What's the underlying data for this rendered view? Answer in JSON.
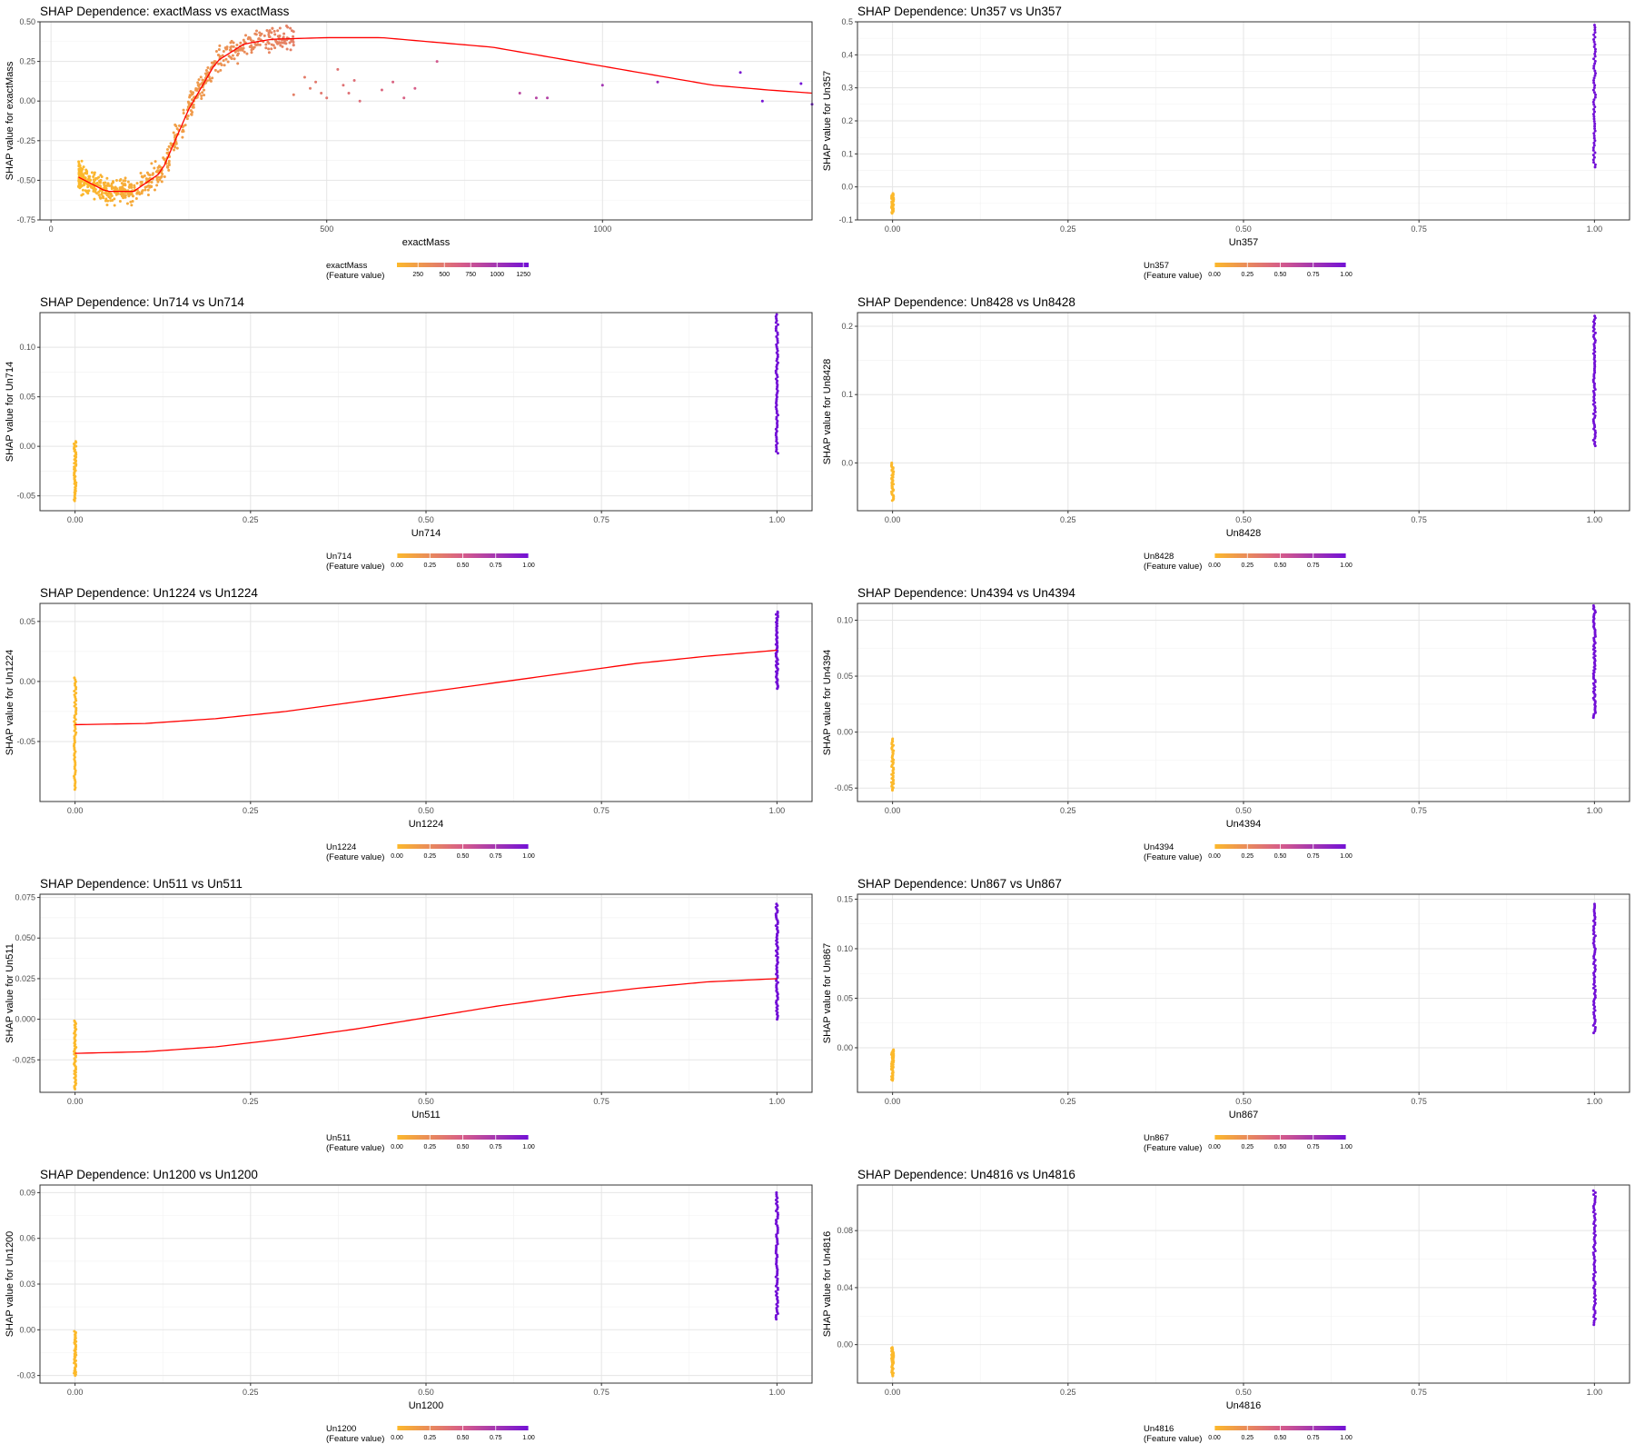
{
  "figure": {
    "background": "#ffffff",
    "panel_border": "#333333",
    "grid_major": "#e5e5e5",
    "grid_minor": "#f3f3f3",
    "smooth_color": "#ff0000",
    "low_color": "#fcb92b",
    "mid_color": "#d65c8a",
    "high_color": "#7210d6"
  },
  "chart_data": [
    {
      "id": "exactMass",
      "type": "scatter",
      "title": "SHAP Dependence: exactMass vs exactMass",
      "xlabel": "exactMass",
      "ylabel": "SHAP value for exactMass",
      "xlim": [
        -20,
        1380
      ],
      "ylim": [
        -0.75,
        0.5
      ],
      "xticks": [
        0,
        500,
        1000
      ],
      "xtick_labels": [
        "0",
        "500",
        "1000"
      ],
      "yticks": [
        -0.75,
        -0.5,
        -0.25,
        0.0,
        0.25,
        0.5
      ],
      "ytick_labels": [
        "-0.75",
        "-0.50",
        "-0.25",
        "0.00",
        "0.25",
        "0.50"
      ],
      "grid": true,
      "legend": {
        "title_line1": "exactMass",
        "title_line2": "(Feature value)",
        "min": 50,
        "max": 1300,
        "ticks": [
          250,
          500,
          750,
          1000,
          1250
        ],
        "tick_labels": [
          "250",
          "500",
          "750",
          "1000",
          "1250"
        ],
        "position": "bottom"
      },
      "cluster": {
        "n": 700,
        "x_range": [
          50,
          440
        ],
        "noise": 0.06,
        "seed": 11
      },
      "points": [
        [
          440,
          0.04
        ],
        [
          460,
          0.15
        ],
        [
          470,
          0.08
        ],
        [
          480,
          0.12
        ],
        [
          490,
          0.05
        ],
        [
          500,
          0.02
        ],
        [
          520,
          0.2
        ],
        [
          530,
          0.1
        ],
        [
          540,
          0.05
        ],
        [
          550,
          0.13
        ],
        [
          560,
          0.0
        ],
        [
          600,
          0.07
        ],
        [
          620,
          0.12
        ],
        [
          640,
          0.02
        ],
        [
          660,
          0.08
        ],
        [
          700,
          0.25
        ],
        [
          850,
          0.05
        ],
        [
          880,
          0.02
        ],
        [
          900,
          0.02
        ],
        [
          1000,
          0.1
        ],
        [
          1100,
          0.12
        ],
        [
          1250,
          0.18
        ],
        [
          1290,
          0.0
        ],
        [
          1360,
          0.11
        ],
        [
          1380,
          -0.02
        ]
      ],
      "smooth": {
        "x": [
          50,
          100,
          150,
          200,
          250,
          300,
          350,
          400,
          500,
          600,
          700,
          800,
          900,
          1000,
          1100,
          1200,
          1300,
          1380
        ],
        "y": [
          -0.48,
          -0.57,
          -0.57,
          -0.45,
          -0.05,
          0.25,
          0.36,
          0.39,
          0.4,
          0.4,
          0.37,
          0.34,
          0.28,
          0.22,
          0.16,
          0.1,
          0.07,
          0.05
        ]
      }
    },
    {
      "id": "Un357",
      "type": "scatter",
      "title": "SHAP Dependence: Un357 vs Un357",
      "xlabel": "Un357",
      "ylabel": "SHAP value for Un357",
      "xlim": [
        -0.05,
        1.05
      ],
      "ylim": [
        -0.1,
        0.5
      ],
      "xticks": [
        0,
        0.25,
        0.5,
        0.75,
        1.0
      ],
      "xtick_labels": [
        "0.00",
        "0.25",
        "0.50",
        "0.75",
        "1.00"
      ],
      "yticks": [
        -0.1,
        0.0,
        0.1,
        0.2,
        0.3,
        0.4,
        0.5
      ],
      "ytick_labels": [
        "-0.1",
        "0.0",
        "0.1",
        "0.2",
        "0.3",
        "0.4",
        "0.5"
      ],
      "grid": true,
      "legend": {
        "title_line1": "Un357",
        "title_line2": "(Feature value)",
        "min": 0,
        "max": 1,
        "ticks": [
          0,
          0.25,
          0.5,
          0.75,
          1.0
        ],
        "tick_labels": [
          "0.00",
          "0.25",
          "0.50",
          "0.75",
          "1.00"
        ],
        "position": "bottom"
      },
      "group0": {
        "x": 0,
        "y_range": [
          -0.08,
          -0.02
        ],
        "n": 40
      },
      "group1": {
        "x": 1,
        "y_range": [
          0.06,
          0.49
        ],
        "n": 60
      }
    },
    {
      "id": "Un714",
      "type": "scatter",
      "title": "SHAP Dependence: Un714 vs Un714",
      "xlabel": "Un714",
      "ylabel": "SHAP value for Un714",
      "xlim": [
        -0.05,
        1.05
      ],
      "ylim": [
        -0.065,
        0.135
      ],
      "xticks": [
        0,
        0.25,
        0.5,
        0.75,
        1.0
      ],
      "xtick_labels": [
        "0.00",
        "0.25",
        "0.50",
        "0.75",
        "1.00"
      ],
      "yticks": [
        -0.05,
        0.0,
        0.05,
        0.1
      ],
      "ytick_labels": [
        "-0.05",
        "0.00",
        "0.05",
        "0.10"
      ],
      "grid": true,
      "legend": {
        "title_line1": "Un714",
        "title_line2": "(Feature value)",
        "min": 0,
        "max": 1,
        "ticks": [
          0,
          0.25,
          0.5,
          0.75,
          1.0
        ],
        "tick_labels": [
          "0.00",
          "0.25",
          "0.50",
          "0.75",
          "1.00"
        ],
        "position": "bottom"
      },
      "group0": {
        "x": 0,
        "y_range": [
          -0.055,
          0.005
        ],
        "n": 50
      },
      "group1": {
        "x": 1,
        "y_range": [
          -0.007,
          0.133
        ],
        "n": 70
      }
    },
    {
      "id": "Un8428",
      "type": "scatter",
      "title": "SHAP Dependence: Un8428 vs Un8428",
      "xlabel": "Un8428",
      "ylabel": "SHAP value for Un8428",
      "xlim": [
        -0.05,
        1.05
      ],
      "ylim": [
        -0.07,
        0.22
      ],
      "xticks": [
        0,
        0.25,
        0.5,
        0.75,
        1.0
      ],
      "xtick_labels": [
        "0.00",
        "0.25",
        "0.50",
        "0.75",
        "1.00"
      ],
      "yticks": [
        0.0,
        0.1,
        0.2
      ],
      "ytick_labels": [
        "0.0",
        "0.1",
        "0.2"
      ],
      "grid": true,
      "legend": {
        "title_line1": "Un8428",
        "title_line2": "(Feature value)",
        "min": 0,
        "max": 1,
        "ticks": [
          0,
          0.25,
          0.5,
          0.75,
          1.0
        ],
        "tick_labels": [
          "0.00",
          "0.25",
          "0.50",
          "0.75",
          "1.00"
        ],
        "position": "bottom"
      },
      "group0": {
        "x": 0,
        "y_range": [
          -0.055,
          0.0
        ],
        "n": 40
      },
      "group1": {
        "x": 1,
        "y_range": [
          0.025,
          0.215
        ],
        "n": 70
      }
    },
    {
      "id": "Un1224",
      "type": "scatter",
      "title": "SHAP Dependence: Un1224 vs Un1224",
      "xlabel": "Un1224",
      "ylabel": "SHAP value for Un1224",
      "xlim": [
        -0.05,
        1.05
      ],
      "ylim": [
        -0.1,
        0.065
      ],
      "xticks": [
        0,
        0.25,
        0.5,
        0.75,
        1.0
      ],
      "xtick_labels": [
        "0.00",
        "0.25",
        "0.50",
        "0.75",
        "1.00"
      ],
      "yticks": [
        -0.05,
        0.0,
        0.05
      ],
      "ytick_labels": [
        "-0.05",
        "0.00",
        "0.05"
      ],
      "grid": true,
      "legend": {
        "title_line1": "Un1224",
        "title_line2": "(Feature value)",
        "min": 0,
        "max": 1,
        "ticks": [
          0,
          0.25,
          0.5,
          0.75,
          1.0
        ],
        "tick_labels": [
          "0.00",
          "0.25",
          "0.50",
          "0.75",
          "1.00"
        ],
        "position": "bottom"
      },
      "group0": {
        "x": 0,
        "y_range": [
          -0.09,
          0.003
        ],
        "n": 60
      },
      "group1": {
        "x": 1,
        "y_range": [
          -0.006,
          0.058
        ],
        "n": 60
      },
      "smooth": {
        "x": [
          0,
          0.1,
          0.2,
          0.3,
          0.4,
          0.5,
          0.6,
          0.7,
          0.8,
          0.9,
          1.0
        ],
        "y": [
          -0.036,
          -0.035,
          -0.031,
          -0.025,
          -0.017,
          -0.009,
          -0.001,
          0.007,
          0.015,
          0.021,
          0.026
        ]
      }
    },
    {
      "id": "Un4394",
      "type": "scatter",
      "title": "SHAP Dependence: Un4394 vs Un4394",
      "xlabel": "Un4394",
      "ylabel": "SHAP value for Un4394",
      "xlim": [
        -0.05,
        1.05
      ],
      "ylim": [
        -0.062,
        0.115
      ],
      "xticks": [
        0,
        0.25,
        0.5,
        0.75,
        1.0
      ],
      "xtick_labels": [
        "0.00",
        "0.25",
        "0.50",
        "0.75",
        "1.00"
      ],
      "yticks": [
        -0.05,
        0.0,
        0.05,
        0.1
      ],
      "ytick_labels": [
        "-0.05",
        "0.00",
        "0.05",
        "0.10"
      ],
      "grid": true,
      "legend": {
        "title_line1": "Un4394",
        "title_line2": "(Feature value)",
        "min": 0,
        "max": 1,
        "ticks": [
          0,
          0.25,
          0.5,
          0.75,
          1.0
        ],
        "tick_labels": [
          "0.00",
          "0.25",
          "0.50",
          "0.75",
          "1.00"
        ],
        "position": "bottom"
      },
      "group0": {
        "x": 0,
        "y_range": [
          -0.052,
          -0.006
        ],
        "n": 40
      },
      "group1": {
        "x": 1,
        "y_range": [
          0.013,
          0.113
        ],
        "n": 70
      }
    },
    {
      "id": "Un511",
      "type": "scatter",
      "title": "SHAP Dependence: Un511 vs Un511",
      "xlabel": "Un511",
      "ylabel": "SHAP value for Un511",
      "xlim": [
        -0.05,
        1.05
      ],
      "ylim": [
        -0.045,
        0.077
      ],
      "xticks": [
        0,
        0.25,
        0.5,
        0.75,
        1.0
      ],
      "xtick_labels": [
        "0.00",
        "0.25",
        "0.50",
        "0.75",
        "1.00"
      ],
      "yticks": [
        -0.025,
        0.0,
        0.025,
        0.05,
        0.075
      ],
      "ytick_labels": [
        "-0.025",
        "0.000",
        "0.025",
        "0.050",
        "0.075"
      ],
      "grid": true,
      "legend": {
        "title_line1": "Un511",
        "title_line2": "(Feature value)",
        "min": 0,
        "max": 1,
        "ticks": [
          0,
          0.25,
          0.5,
          0.75,
          1.0
        ],
        "tick_labels": [
          "0.00",
          "0.25",
          "0.50",
          "0.75",
          "1.00"
        ],
        "position": "bottom"
      },
      "group0": {
        "x": 0,
        "y_range": [
          -0.043,
          -0.001
        ],
        "n": 50
      },
      "group1": {
        "x": 1,
        "y_range": [
          0.0,
          0.071
        ],
        "n": 70
      },
      "smooth": {
        "x": [
          0,
          0.1,
          0.2,
          0.3,
          0.4,
          0.5,
          0.6,
          0.7,
          0.8,
          0.9,
          1.0
        ],
        "y": [
          -0.021,
          -0.02,
          -0.017,
          -0.012,
          -0.006,
          0.001,
          0.008,
          0.014,
          0.019,
          0.023,
          0.025
        ]
      }
    },
    {
      "id": "Un867",
      "type": "scatter",
      "title": "SHAP Dependence: Un867 vs Un867",
      "xlabel": "Un867",
      "ylabel": "SHAP value for Un867",
      "xlim": [
        -0.05,
        1.05
      ],
      "ylim": [
        -0.045,
        0.155
      ],
      "xticks": [
        0,
        0.25,
        0.5,
        0.75,
        1.0
      ],
      "xtick_labels": [
        "0.00",
        "0.25",
        "0.50",
        "0.75",
        "1.00"
      ],
      "yticks": [
        0.0,
        0.05,
        0.1,
        0.15
      ],
      "ytick_labels": [
        "0.00",
        "0.05",
        "0.10",
        "0.15"
      ],
      "grid": true,
      "legend": {
        "title_line1": "Un867",
        "title_line2": "(Feature value)",
        "min": 0,
        "max": 1,
        "ticks": [
          0,
          0.25,
          0.5,
          0.75,
          1.0
        ],
        "tick_labels": [
          "0.00",
          "0.25",
          "0.50",
          "0.75",
          "1.00"
        ],
        "position": "bottom"
      },
      "group0": {
        "x": 0,
        "y_range": [
          -0.033,
          -0.002
        ],
        "n": 40
      },
      "group1": {
        "x": 1,
        "y_range": [
          0.015,
          0.145
        ],
        "n": 70
      }
    },
    {
      "id": "Un1200",
      "type": "scatter",
      "title": "SHAP Dependence: Un1200 vs Un1200",
      "xlabel": "Un1200",
      "ylabel": "SHAP value for Un1200",
      "xlim": [
        -0.05,
        1.05
      ],
      "ylim": [
        -0.035,
        0.095
      ],
      "xticks": [
        0,
        0.25,
        0.5,
        0.75,
        1.0
      ],
      "xtick_labels": [
        "0.00",
        "0.25",
        "0.50",
        "0.75",
        "1.00"
      ],
      "yticks": [
        -0.03,
        0.0,
        0.03,
        0.06,
        0.09
      ],
      "ytick_labels": [
        "-0.03",
        "0.00",
        "0.03",
        "0.06",
        "0.09"
      ],
      "grid": true,
      "legend": {
        "title_line1": "Un1200",
        "title_line2": "(Feature value)",
        "min": 0,
        "max": 1,
        "ticks": [
          0,
          0.25,
          0.5,
          0.75,
          1.0
        ],
        "tick_labels": [
          "0.00",
          "0.25",
          "0.50",
          "0.75",
          "1.00"
        ],
        "position": "bottom"
      },
      "group0": {
        "x": 0,
        "y_range": [
          -0.03,
          -0.001
        ],
        "n": 40
      },
      "group1": {
        "x": 1,
        "y_range": [
          0.007,
          0.09
        ],
        "n": 70
      }
    },
    {
      "id": "Un4816",
      "type": "scatter",
      "title": "SHAP Dependence: Un4816 vs Un4816",
      "xlabel": "Un4816",
      "ylabel": "SHAP value for Un4816",
      "xlim": [
        -0.05,
        1.05
      ],
      "ylim": [
        -0.027,
        0.112
      ],
      "xticks": [
        0,
        0.25,
        0.5,
        0.75,
        1.0
      ],
      "xtick_labels": [
        "0.00",
        "0.25",
        "0.50",
        "0.75",
        "1.00"
      ],
      "yticks": [
        0.0,
        0.04,
        0.08
      ],
      "ytick_labels": [
        "0.00",
        "0.04",
        "0.08"
      ],
      "grid": true,
      "legend": {
        "title_line1": "Un4816",
        "title_line2": "(Feature value)",
        "min": 0,
        "max": 1,
        "ticks": [
          0,
          0.25,
          0.5,
          0.75,
          1.0
        ],
        "tick_labels": [
          "0.00",
          "0.25",
          "0.50",
          "0.75",
          "1.00"
        ],
        "position": "bottom"
      },
      "group0": {
        "x": 0,
        "y_range": [
          -0.022,
          -0.002
        ],
        "n": 40
      },
      "group1": {
        "x": 1,
        "y_range": [
          0.014,
          0.108
        ],
        "n": 70
      }
    }
  ]
}
